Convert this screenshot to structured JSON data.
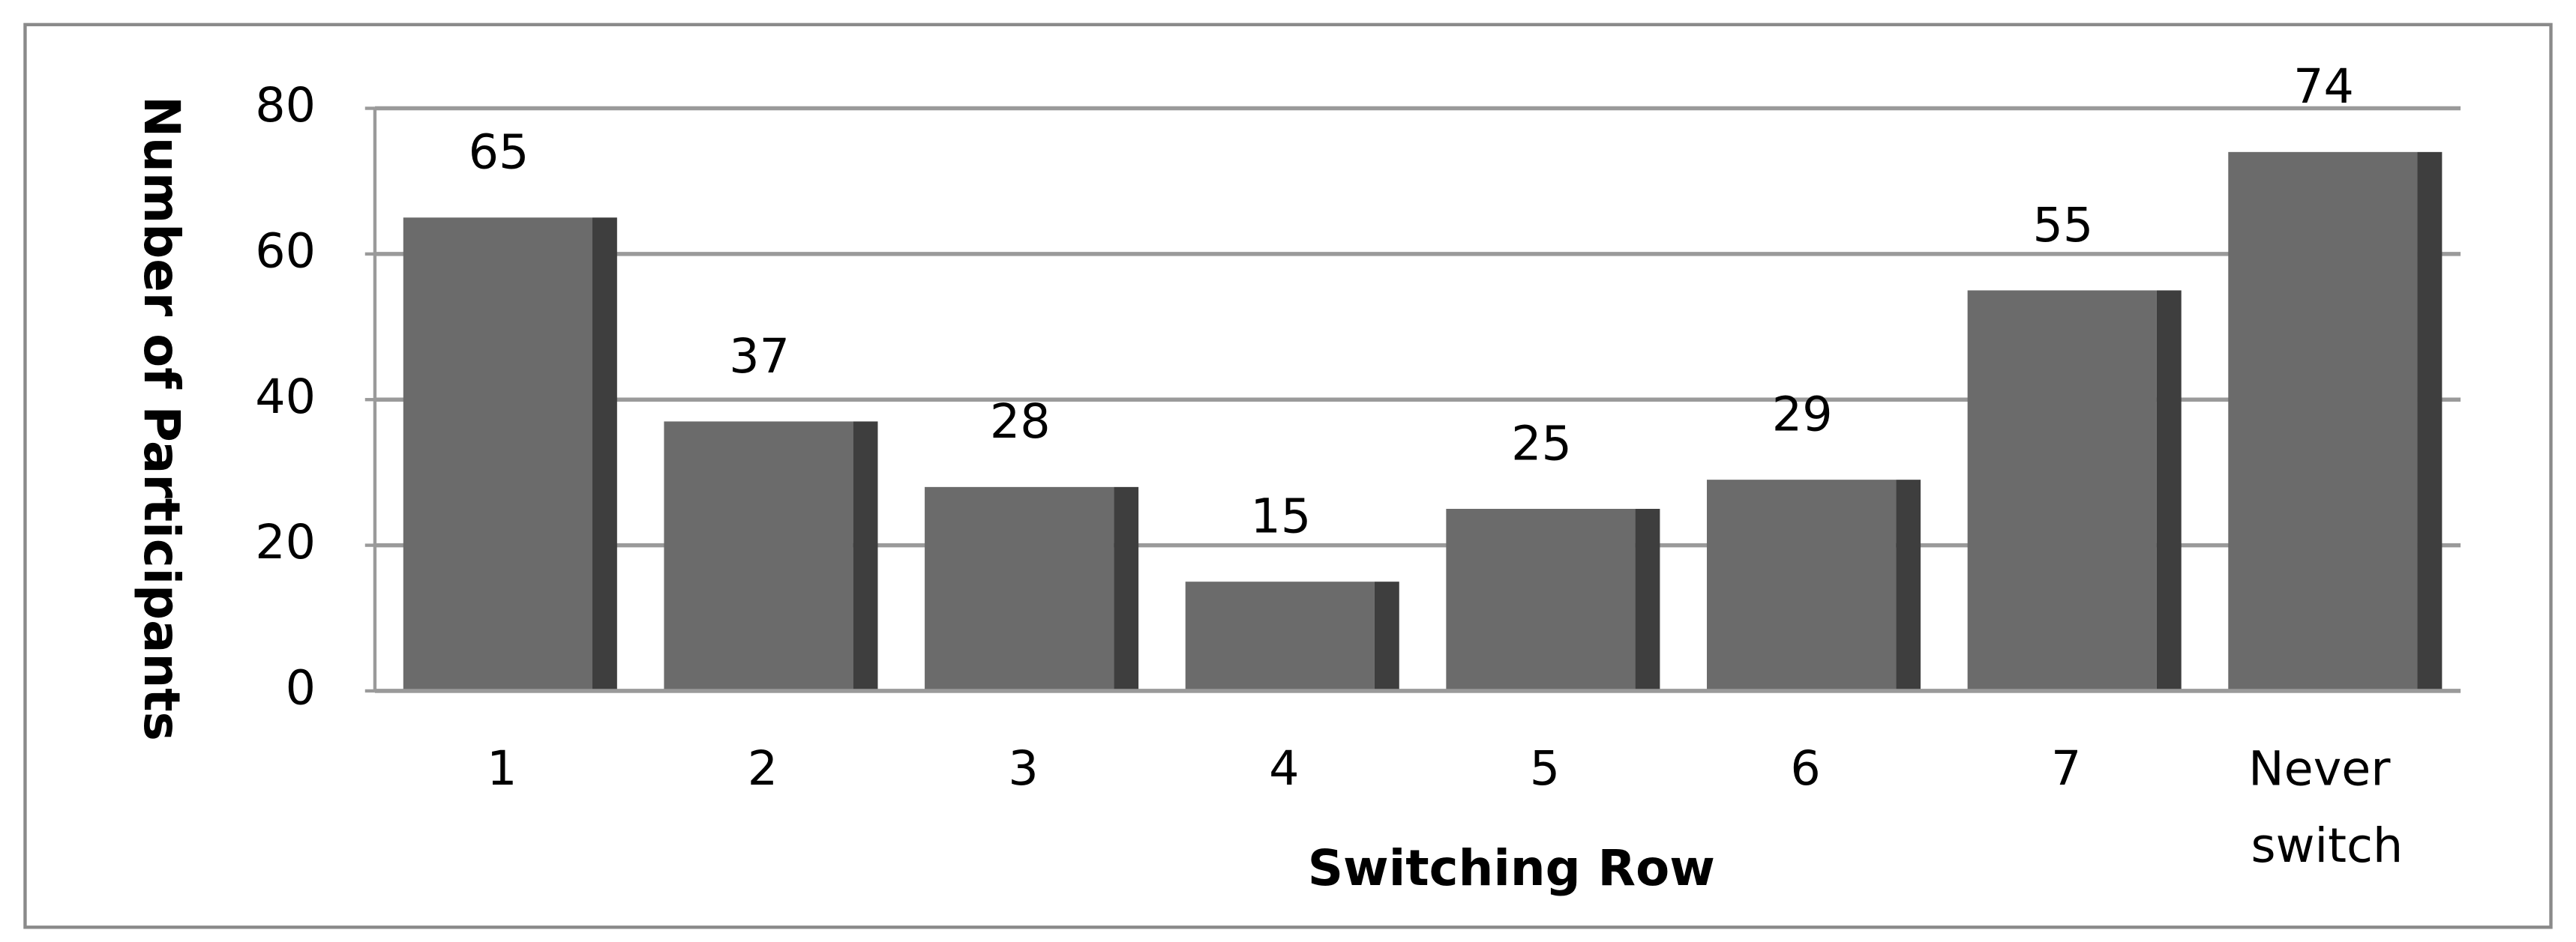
{
  "chart_data": {
    "type": "bar",
    "categories": [
      "1",
      "2",
      "3",
      "4",
      "5",
      "6",
      "7",
      "Never switch"
    ],
    "values": [
      65,
      37,
      28,
      15,
      25,
      29,
      55,
      74
    ],
    "color": "#6b6b6b",
    "x_label": "Switching Row",
    "y_label": "Number of Participants",
    "ylim": [
      0,
      80
    ],
    "yticks": [
      0,
      20,
      40,
      60,
      80
    ],
    "grid": true
  }
}
